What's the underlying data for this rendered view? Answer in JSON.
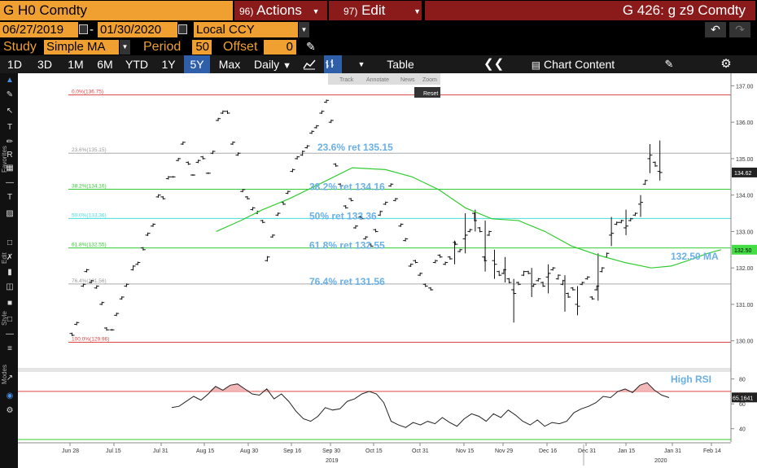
{
  "header": {
    "ticker": "G H0 Comdty",
    "actions": {
      "num": "96)",
      "label": "Actions"
    },
    "edit": {
      "num": "97)",
      "label": "Edit"
    },
    "right_title": "G 426: g z9 Comdty"
  },
  "controls": {
    "start_date": "06/27/2019",
    "end_date": "01/30/2020",
    "currency": "Local CCY",
    "study_label": "Study",
    "study_value": "Simple MA",
    "period_label": "Period",
    "period_value": "50",
    "offset_label": "Offset",
    "offset_value": "0"
  },
  "toolbar": {
    "ranges": [
      "1D",
      "3D",
      "1M",
      "6M",
      "YTD",
      "1Y",
      "5Y",
      "Max"
    ],
    "selected_range": "5Y",
    "frequency": "Daily",
    "table": "Table",
    "chart_content": "Chart Content"
  },
  "chart_overlay": {
    "mini_tools": [
      "Track",
      "Annotate",
      "News",
      "Zoom"
    ],
    "reset": "Reset"
  },
  "left_tabs": [
    "Favorites",
    "Edit",
    "Style",
    "Modes"
  ],
  "colors": {
    "orange": "#f0a030",
    "dark_red": "#8b1a1a",
    "selected_blue": "#2f5fa8",
    "price_bars": "#111111",
    "ma_line": "#33cc33",
    "fib_label": "#6ab0e8",
    "fib_red": "#dd4444",
    "fib_green": "#33cc33",
    "fib_cyan": "#44dddd",
    "fib_gray": "#aaaaaa"
  },
  "chart_data": [
    {
      "type": "bar",
      "subtype": "price-bars-ohlc",
      "series_name": "G H0 Comdty",
      "ylim": [
        129.3,
        137.3
      ],
      "yticks": [
        130.0,
        131.0,
        132.0,
        133.0,
        134.0,
        135.0,
        136.0,
        137.0
      ],
      "ytick_labels": [
        "130.00",
        "131.00",
        "132.00",
        "133.00",
        "134.00",
        "135.00",
        "136.00",
        "137.00"
      ],
      "x_labels": [
        "Jun 28",
        "Jul 15",
        "Jul 31",
        "Aug 15",
        "Aug 30",
        "Sep 16",
        "Sep 30",
        "Oct 15",
        "Oct 31",
        "Nov 15",
        "Nov 29",
        "Dec 16",
        "Dec 31",
        "Jan 15",
        "Jan 31",
        "Feb 14"
      ],
      "year_labels": [
        "2019",
        "2020"
      ],
      "fib_levels": [
        {
          "pct_label": "0.0%",
          "value": 136.75,
          "value_label": "(136.75)",
          "color": "#dd4444"
        },
        {
          "pct_label": "23.6%",
          "value": 135.15,
          "value_label": "(135.15)",
          "color": "#aaaaaa",
          "annotation": "23.6% ret 135.15"
        },
        {
          "pct_label": "38.2%",
          "value": 134.16,
          "value_label": "(134.16)",
          "color": "#33cc33",
          "annotation": "38.2% ret 134.16"
        },
        {
          "pct_label": "50.0%",
          "value": 133.36,
          "value_label": "(133.36)",
          "color": "#44dddd",
          "annotation": "50% ret 133.36"
        },
        {
          "pct_label": "61.8%",
          "value": 132.55,
          "value_label": "(132.55)",
          "color": "#33cc33",
          "annotation": "61.8% ret 132.55"
        },
        {
          "pct_label": "76.4%",
          "value": 131.56,
          "value_label": "(131.56)",
          "color": "#aaaaaa",
          "annotation": "76.4% ret 131.56"
        },
        {
          "pct_label": "100.0%",
          "value": 129.96,
          "value_label": "(129.96)",
          "color": "#dd4444"
        }
      ],
      "last_price": 134.62,
      "last_price_label": "134.62",
      "ma_last": 132.5,
      "ma_last_label": "132.50",
      "ma_annotation": "132.50 MA",
      "ma_series": [
        [
          0.225,
          133.0
        ],
        [
          0.262,
          133.3
        ],
        [
          0.295,
          133.6
        ],
        [
          0.335,
          133.9
        ],
        [
          0.38,
          134.3
        ],
        [
          0.43,
          134.75
        ],
        [
          0.48,
          134.7
        ],
        [
          0.52,
          134.5
        ],
        [
          0.56,
          134.15
        ],
        [
          0.6,
          133.65
        ],
        [
          0.64,
          133.35
        ],
        [
          0.68,
          133.3
        ],
        [
          0.72,
          133.0
        ],
        [
          0.76,
          132.6
        ],
        [
          0.8,
          132.35
        ],
        [
          0.84,
          132.15
        ],
        [
          0.88,
          132.0
        ],
        [
          0.91,
          132.05
        ],
        [
          0.935,
          132.2
        ],
        [
          0.965,
          132.4
        ],
        [
          0.985,
          132.5
        ]
      ],
      "price_bars": [
        [
          0.008,
          130.2,
          130.15
        ],
        [
          0.015,
          130.45,
          130.5
        ],
        [
          0.025,
          131.5,
          131.55
        ],
        [
          0.03,
          131.9,
          131.95
        ],
        [
          0.037,
          131.6,
          131.65
        ],
        [
          0.045,
          131.45,
          131.5
        ],
        [
          0.053,
          131.0,
          131.05
        ],
        [
          0.06,
          130.35,
          130.3
        ],
        [
          0.068,
          130.3,
          130.3
        ],
        [
          0.075,
          130.7,
          130.75
        ],
        [
          0.083,
          131.15,
          131.2
        ],
        [
          0.09,
          131.5,
          131.55
        ],
        [
          0.1,
          131.95,
          132.05
        ],
        [
          0.107,
          132.1,
          132.15
        ],
        [
          0.115,
          132.55,
          132.5
        ],
        [
          0.122,
          132.9,
          132.95
        ],
        [
          0.13,
          133.15,
          133.2
        ],
        [
          0.138,
          133.95,
          134.0
        ],
        [
          0.145,
          133.95,
          133.9
        ],
        [
          0.153,
          134.45,
          134.5
        ],
        [
          0.16,
          134.5,
          134.5
        ],
        [
          0.168,
          134.95,
          135.0
        ],
        [
          0.175,
          135.4,
          135.45
        ],
        [
          0.183,
          134.9,
          134.85
        ],
        [
          0.19,
          134.55,
          134.55
        ],
        [
          0.198,
          134.9,
          134.95
        ],
        [
          0.205,
          135.05,
          135.0
        ],
        [
          0.213,
          134.6,
          134.6
        ],
        [
          0.22,
          135.15,
          135.2
        ],
        [
          0.228,
          136.05,
          136.1
        ],
        [
          0.235,
          136.25,
          136.3
        ],
        [
          0.242,
          136.3,
          136.25
        ],
        [
          0.25,
          135.4,
          135.45
        ],
        [
          0.258,
          135.1,
          135.15
        ],
        [
          0.265,
          134.1,
          134.15
        ],
        [
          0.272,
          133.95,
          133.9
        ],
        [
          0.28,
          133.6,
          133.65
        ],
        [
          0.287,
          133.5,
          133.55
        ],
        [
          0.295,
          133.3,
          133.25
        ],
        [
          0.302,
          132.2,
          132.3
        ],
        [
          0.31,
          132.85,
          132.9
        ],
        [
          0.318,
          133.45,
          133.5
        ],
        [
          0.326,
          133.8,
          133.75
        ],
        [
          0.333,
          134.05,
          134.1
        ],
        [
          0.34,
          134.65,
          134.7
        ],
        [
          0.347,
          135.0,
          135.05
        ],
        [
          0.355,
          135.1,
          135.2
        ],
        [
          0.362,
          135.3,
          135.35
        ],
        [
          0.369,
          135.7,
          135.75
        ],
        [
          0.376,
          135.85,
          135.9
        ],
        [
          0.384,
          136.25,
          136.3
        ],
        [
          0.391,
          136.55,
          136.6
        ],
        [
          0.398,
          136.0,
          136.05
        ],
        [
          0.405,
          134.85,
          134.8
        ],
        [
          0.412,
          134.3,
          134.25
        ],
        [
          0.42,
          133.7,
          133.65
        ],
        [
          0.428,
          133.9,
          133.85
        ],
        [
          0.435,
          133.1,
          133.15
        ],
        [
          0.443,
          133.4,
          133.35
        ],
        [
          0.45,
          132.8,
          132.85
        ],
        [
          0.458,
          132.65,
          132.6
        ],
        [
          0.465,
          133.05,
          133.0
        ],
        [
          0.472,
          133.45,
          133.55
        ],
        [
          0.48,
          133.75,
          133.8
        ],
        [
          0.488,
          134.25,
          134.3
        ],
        [
          0.495,
          133.85,
          133.9
        ],
        [
          0.503,
          133.15,
          133.2
        ],
        [
          0.51,
          132.75,
          132.8
        ],
        [
          0.518,
          132.05,
          132.1
        ],
        [
          0.525,
          132.2,
          132.15
        ],
        [
          0.532,
          131.8,
          131.85
        ],
        [
          0.54,
          131.55,
          131.5
        ],
        [
          0.548,
          131.45,
          131.4
        ],
        [
          0.555,
          132.15,
          132.2
        ],
        [
          0.562,
          132.35,
          132.3
        ],
        [
          0.57,
          132.1,
          132.15
        ],
        [
          0.577,
          132.3,
          132.25
        ],
        [
          0.585,
          132.7,
          132.65
        ],
        [
          0.592,
          132.45,
          132.5
        ],
        [
          0.6,
          132.8,
          132.9
        ],
        [
          0.607,
          133.0,
          133.05
        ],
        [
          0.614,
          133.5,
          133.3
        ],
        [
          0.622,
          133.1,
          133.0
        ],
        [
          0.629,
          132.3,
          132.2
        ],
        [
          0.636,
          132.9,
          133.0
        ],
        [
          0.644,
          132.2,
          132.1
        ],
        [
          0.651,
          131.9,
          131.8
        ],
        [
          0.658,
          131.85,
          131.95
        ],
        [
          0.666,
          131.7,
          131.6
        ],
        [
          0.673,
          131.4,
          131.3
        ],
        [
          0.68,
          131.6,
          131.55
        ],
        [
          0.688,
          131.8,
          131.9
        ],
        [
          0.695,
          131.9,
          131.85
        ],
        [
          0.703,
          131.5,
          131.55
        ],
        [
          0.71,
          131.65,
          131.7
        ],
        [
          0.717,
          131.6,
          131.5
        ],
        [
          0.725,
          131.75,
          131.85
        ],
        [
          0.732,
          131.95,
          132.0
        ],
        [
          0.74,
          131.7,
          131.8
        ],
        [
          0.747,
          131.55,
          131.65
        ],
        [
          0.755,
          131.3,
          131.2
        ],
        [
          0.762,
          131.45,
          131.4
        ],
        [
          0.769,
          131.0,
          130.95
        ],
        [
          0.776,
          131.55,
          131.6
        ],
        [
          0.784,
          131.7,
          131.75
        ],
        [
          0.791,
          131.2,
          131.15
        ],
        [
          0.798,
          131.4,
          131.5
        ],
        [
          0.806,
          131.9,
          132.0
        ],
        [
          0.813,
          132.3,
          132.4
        ],
        [
          0.82,
          132.9,
          132.95
        ],
        [
          0.828,
          133.2,
          133.25
        ],
        [
          0.835,
          133.25,
          133.3
        ],
        [
          0.842,
          133.1,
          133.15
        ],
        [
          0.849,
          133.3,
          133.35
        ],
        [
          0.856,
          133.45,
          133.5
        ],
        [
          0.864,
          133.75,
          133.8
        ],
        [
          0.871,
          134.3,
          134.4
        ],
        [
          0.878,
          135.0,
          135.1
        ],
        [
          0.886,
          134.9,
          134.8
        ],
        [
          0.893,
          134.65,
          134.62
        ]
      ],
      "price_ranges": [
        [
          0.584,
          132.1,
          132.75
        ],
        [
          0.6,
          132.4,
          133.5
        ],
        [
          0.615,
          133.0,
          133.6
        ],
        [
          0.63,
          131.9,
          133.3
        ],
        [
          0.644,
          131.7,
          132.5
        ],
        [
          0.66,
          131.6,
          132.3
        ],
        [
          0.673,
          130.5,
          131.7
        ],
        [
          0.7,
          131.2,
          132.0
        ],
        [
          0.725,
          131.3,
          132.1
        ],
        [
          0.75,
          130.8,
          131.8
        ],
        [
          0.769,
          130.7,
          131.5
        ],
        [
          0.8,
          131.1,
          132.4
        ],
        [
          0.82,
          132.6,
          133.4
        ],
        [
          0.842,
          132.9,
          133.6
        ],
        [
          0.864,
          133.4,
          134.0
        ],
        [
          0.878,
          134.6,
          135.4
        ],
        [
          0.893,
          134.4,
          135.5
        ]
      ]
    },
    {
      "type": "line",
      "series_name": "RSI",
      "annotation": "High RSI",
      "ylim": [
        30,
        85
      ],
      "yticks": [
        40,
        60,
        80
      ],
      "ytick_labels": [
        "40",
        "60",
        "80"
      ],
      "upper_threshold": 70,
      "lower_threshold": 30,
      "last_value": 65.1641,
      "last_value_label": "65.1641",
      "values": [
        [
          0.14,
          57
        ],
        [
          0.16,
          58
        ],
        [
          0.18,
          62
        ],
        [
          0.2,
          66
        ],
        [
          0.22,
          63
        ],
        [
          0.24,
          68
        ],
        [
          0.26,
          74
        ],
        [
          0.28,
          71
        ],
        [
          0.3,
          75
        ],
        [
          0.32,
          76
        ],
        [
          0.34,
          72
        ],
        [
          0.36,
          68
        ],
        [
          0.38,
          67
        ],
        [
          0.4,
          72
        ],
        [
          0.42,
          64
        ],
        [
          0.44,
          68
        ],
        [
          0.46,
          62
        ],
        [
          0.48,
          54
        ],
        [
          0.5,
          48
        ],
        [
          0.52,
          46
        ],
        [
          0.54,
          50
        ],
        [
          0.56,
          57
        ],
        [
          0.58,
          55
        ],
        [
          0.6,
          56
        ],
        [
          0.62,
          62
        ],
        [
          0.64,
          64
        ],
        [
          0.66,
          68
        ],
        [
          0.68,
          70
        ],
        [
          0.7,
          68
        ],
        [
          0.72,
          61
        ],
        [
          0.74,
          46
        ],
        [
          0.76,
          43
        ],
        [
          0.78,
          41
        ],
        [
          0.8,
          45
        ],
        [
          0.82,
          43
        ],
        [
          0.84,
          46
        ],
        [
          0.86,
          44
        ],
        [
          0.88,
          49
        ],
        [
          0.9,
          45
        ],
        [
          0.92,
          42
        ],
        [
          0.94,
          48
        ],
        [
          0.96,
          52
        ],
        [
          0.98,
          50
        ],
        [
          1.0,
          46
        ],
        [
          1.02,
          52
        ],
        [
          1.04,
          49
        ],
        [
          1.06,
          55
        ],
        [
          1.08,
          51
        ],
        [
          1.1,
          46
        ],
        [
          1.12,
          43
        ],
        [
          1.14,
          47
        ],
        [
          1.16,
          42
        ],
        [
          1.18,
          45
        ],
        [
          1.2,
          44
        ],
        [
          1.22,
          46
        ],
        [
          1.24,
          53
        ],
        [
          1.26,
          56
        ],
        [
          1.28,
          58
        ],
        [
          1.3,
          61
        ],
        [
          1.32,
          66
        ],
        [
          1.34,
          65
        ],
        [
          1.36,
          70
        ],
        [
          1.38,
          72
        ],
        [
          1.4,
          69
        ],
        [
          1.42,
          75
        ],
        [
          1.44,
          77
        ],
        [
          1.46,
          71
        ],
        [
          1.48,
          67
        ],
        [
          1.5,
          65
        ]
      ]
    }
  ]
}
